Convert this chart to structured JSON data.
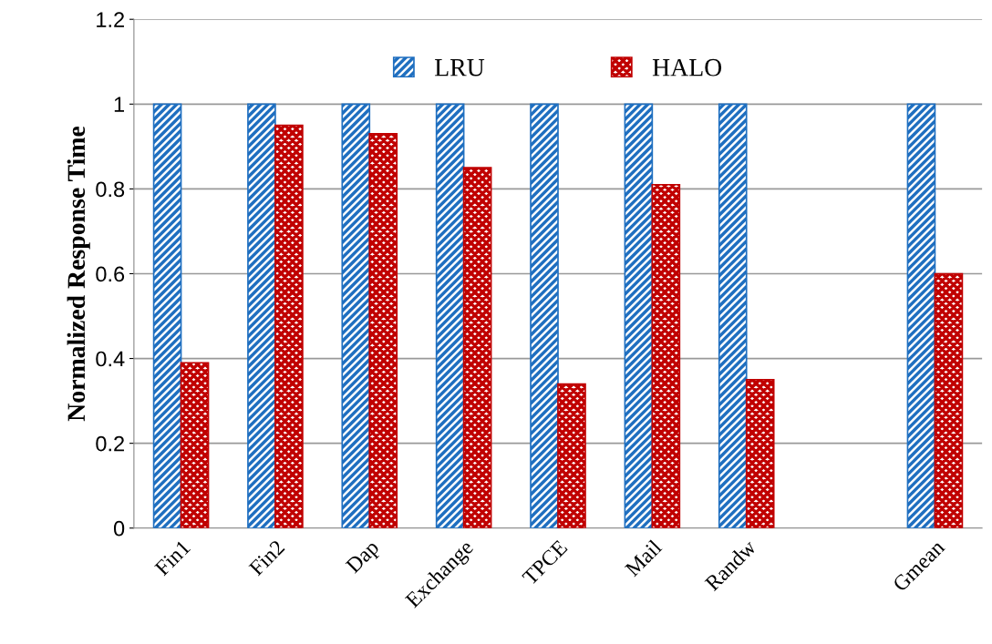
{
  "chart_data": {
    "type": "bar",
    "ylabel": "Normalized Response Time",
    "categories": [
      "Fin1",
      "Fin2",
      "Dap",
      "Exchange",
      "TPCE",
      "Mail",
      "Randw",
      null,
      "Gmean"
    ],
    "series": [
      {
        "name": "LRU",
        "color": "#1f6fc0",
        "values": [
          1,
          1,
          1,
          1,
          1,
          1,
          1,
          null,
          1
        ]
      },
      {
        "name": "HALO",
        "color": "#c00000",
        "values": [
          0.39,
          0.95,
          0.93,
          0.85,
          0.34,
          0.81,
          0.35,
          null,
          0.6
        ]
      }
    ],
    "ylim": [
      0,
      1.2
    ],
    "yticks": [
      0,
      0.2,
      0.4,
      0.6,
      0.8,
      1,
      1.2
    ],
    "grid": "y",
    "legend": "top"
  }
}
